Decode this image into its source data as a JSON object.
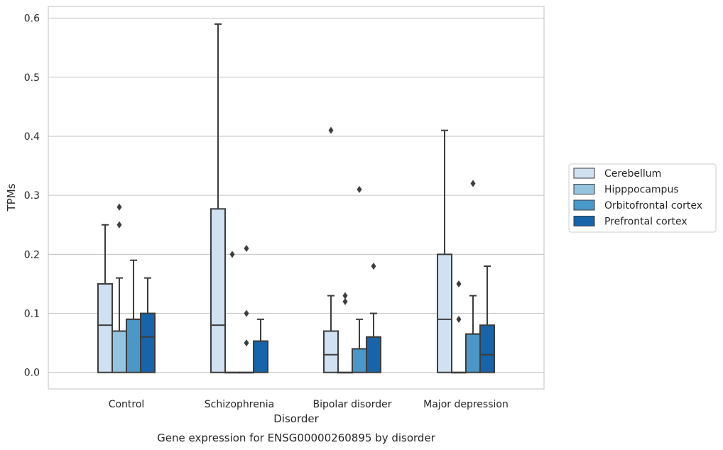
{
  "chart_data": {
    "type": "box",
    "title": "",
    "caption": "Gene expression for ENSG00000260895 by disorder",
    "xlabel": "Disorder",
    "ylabel": "TPMs",
    "ylim": [
      -0.028,
      0.62
    ],
    "yticks": [
      0.0,
      0.1,
      0.2,
      0.3,
      0.4,
      0.5,
      0.6
    ],
    "ytick_labels": [
      "0.0",
      "0.1",
      "0.2",
      "0.3",
      "0.4",
      "0.5",
      "0.6"
    ],
    "grid": "horizontal",
    "legend_position": "right",
    "categories": [
      "Control",
      "Schizophrenia",
      "Bipolar disorder",
      "Major depression"
    ],
    "series": [
      {
        "name": "Cerebellum",
        "color": "#d0e1f2",
        "boxes": [
          {
            "q1": 0.0,
            "median": 0.08,
            "q3": 0.15,
            "whisker_low": 0.0,
            "whisker_high": 0.25,
            "outliers": []
          },
          {
            "q1": 0.0,
            "median": 0.08,
            "q3": 0.277,
            "whisker_low": 0.0,
            "whisker_high": 0.59,
            "outliers": []
          },
          {
            "q1": 0.0,
            "median": 0.03,
            "q3": 0.07,
            "whisker_low": 0.0,
            "whisker_high": 0.13,
            "outliers": [
              0.41
            ]
          },
          {
            "q1": 0.0,
            "median": 0.09,
            "q3": 0.2,
            "whisker_low": 0.0,
            "whisker_high": 0.41,
            "outliers": []
          }
        ]
      },
      {
        "name": "Hipppocampus",
        "color": "#94c4df",
        "boxes": [
          {
            "q1": 0.0,
            "median": 0.07,
            "q3": 0.07,
            "whisker_low": 0.0,
            "whisker_high": 0.16,
            "outliers": [
              0.28,
              0.25
            ]
          },
          {
            "q1": 0.0,
            "median": 0.0,
            "q3": 0.0,
            "whisker_low": 0.0,
            "whisker_high": 0.0,
            "outliers": [
              0.2
            ]
          },
          {
            "q1": 0.0,
            "median": 0.0,
            "q3": 0.0,
            "whisker_low": 0.0,
            "whisker_high": 0.0,
            "outliers": [
              0.13,
              0.12
            ]
          },
          {
            "q1": 0.0,
            "median": 0.0,
            "q3": 0.0,
            "whisker_low": 0.0,
            "whisker_high": 0.0,
            "outliers": [
              0.15,
              0.09
            ]
          }
        ]
      },
      {
        "name": "Orbitofrontal cortex",
        "color": "#4a98c9",
        "boxes": [
          {
            "q1": 0.0,
            "median": 0.09,
            "q3": 0.09,
            "whisker_low": 0.0,
            "whisker_high": 0.19,
            "outliers": []
          },
          {
            "q1": 0.0,
            "median": 0.0,
            "q3": 0.0,
            "whisker_low": 0.0,
            "whisker_high": 0.0,
            "outliers": [
              0.21,
              0.1,
              0.05
            ]
          },
          {
            "q1": 0.0,
            "median": 0.04,
            "q3": 0.04,
            "whisker_low": 0.0,
            "whisker_high": 0.09,
            "outliers": [
              0.31
            ]
          },
          {
            "q1": 0.0,
            "median": 0.065,
            "q3": 0.065,
            "whisker_low": 0.0,
            "whisker_high": 0.13,
            "outliers": [
              0.32
            ]
          }
        ]
      },
      {
        "name": "Prefrontal cortex",
        "color": "#1764ab",
        "boxes": [
          {
            "q1": 0.0,
            "median": 0.06,
            "q3": 0.1,
            "whisker_low": 0.0,
            "whisker_high": 0.16,
            "outliers": []
          },
          {
            "q1": 0.0,
            "median": 0.053,
            "q3": 0.053,
            "whisker_low": 0.0,
            "whisker_high": 0.09,
            "outliers": []
          },
          {
            "q1": 0.0,
            "median": 0.06,
            "q3": 0.06,
            "whisker_low": 0.0,
            "whisker_high": 0.1,
            "outliers": [
              0.18
            ]
          },
          {
            "q1": 0.0,
            "median": 0.03,
            "q3": 0.08,
            "whisker_low": 0.0,
            "whisker_high": 0.18,
            "outliers": []
          }
        ]
      }
    ]
  },
  "colors": {
    "grid": "#cccccc",
    "frame": "#cccccc",
    "line": "#3d3d3d",
    "text": "#262626"
  }
}
